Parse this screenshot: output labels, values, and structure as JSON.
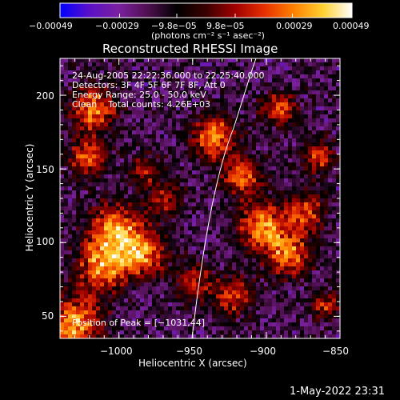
{
  "chart_data": {
    "type": "heatmap",
    "title": "Reconstructed RHESSI Image",
    "xlabel": "Heliocentric X (arcsec)",
    "ylabel": "Heliocentric Y (arcsec)",
    "xlim": [
      -1040,
      -850
    ],
    "ylim": [
      35,
      225
    ],
    "x_ticks": [
      -1000,
      -950,
      -900,
      -850
    ],
    "x_tick_labels": [
      "−1000",
      "−950",
      "−900",
      "−850"
    ],
    "y_ticks": [
      50,
      100,
      150,
      200
    ],
    "y_tick_labels": [
      "50",
      "100",
      "150",
      "200"
    ],
    "colorbar": {
      "range": [
        -0.00049,
        0.00049
      ],
      "ticks": [
        -0.00049,
        -0.00029,
        -9.8e-05,
        9.8e-05,
        0.00029,
        0.00049
      ],
      "tick_labels": [
        "−0.00049",
        "−0.00029",
        "−9.8e−05",
        "9.8e−05",
        "0.00029",
        "0.00049"
      ],
      "units": "(photons cm⁻² s⁻¹ asec⁻²)",
      "colormap": [
        "#0000ff",
        "#5a10c8",
        "#7a20a0",
        "#501050",
        "#000000",
        "#3a0000",
        "#a00000",
        "#e63000",
        "#ff8000",
        "#ffd030",
        "#ffffff"
      ]
    },
    "annotations": [
      "24-Aug-2005 22:22:36.000 to 22:25:40.000",
      "Detectors: 3F 4F 5F 6F 7F 8F, Att 0",
      "Energy Range: 25.0 - 50.0 keV",
      "Clean    Total counts: 4.26E+03"
    ],
    "peak_label": "Position of Peak = [−1031,44]",
    "limb": "solar limb curve",
    "grid": false,
    "legend": "none"
  },
  "footer": {
    "timestamp": "1-May-2022 23:31"
  },
  "colors": {
    "background": "#000000",
    "foreground": "#ffffff"
  }
}
